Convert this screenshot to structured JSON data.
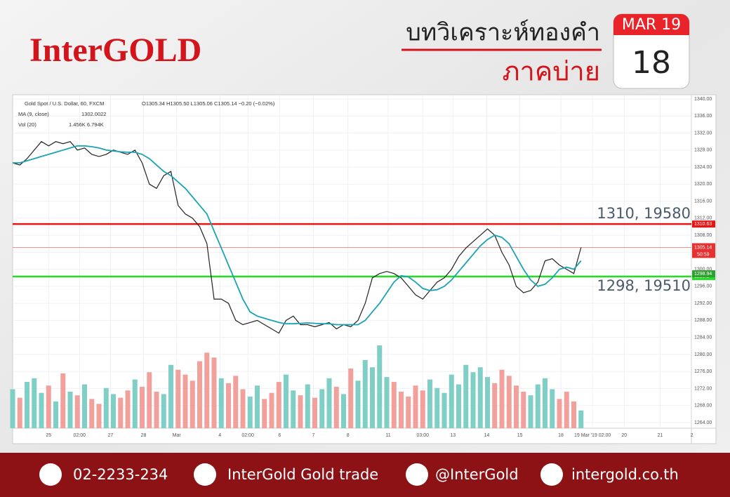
{
  "header": {
    "logo": "InterGOLD",
    "title": "บทวิเคราะห์ทองคำ",
    "subtitle": "ภาคบ่าย",
    "calendar_month": "MAR 19",
    "calendar_day": "18"
  },
  "footer": {
    "phone": "02-2233-234",
    "facebook": "InterGold Gold trade",
    "line": "@InterGold",
    "website": "intergold.co.th"
  },
  "chart_data": {
    "type": "line",
    "title": "Gold Spot / U.S. Dollar, 60, FXCM",
    "ohlc": "O1305.34 H1305.50 L1305.06 C1305.14 −0.20 (−0.02%)",
    "ma_label": "MA (9, close)",
    "ma_value": "1302.0022",
    "vol_label": "Vol (20)",
    "vol_value": "1.456K 6.794K",
    "countdown": "50:59",
    "ylim": [
      1263,
      1341
    ],
    "yticks": [
      {
        "value": 1264,
        "label": "1264.00"
      },
      {
        "value": 1268,
        "label": "1268.00"
      },
      {
        "value": 1272,
        "label": "1272.00"
      },
      {
        "value": 1276,
        "label": "1276.00"
      },
      {
        "value": 1280,
        "label": "1280.00"
      },
      {
        "value": 1284,
        "label": "1284.00"
      },
      {
        "value": 1288,
        "label": "1288.00"
      },
      {
        "value": 1292,
        "label": "1292.00"
      },
      {
        "value": 1296,
        "label": "1296.00"
      },
      {
        "value": 1300,
        "label": "1300.00"
      },
      {
        "value": 1304,
        "label": "1304.00"
      },
      {
        "value": 1308,
        "label": "1308.00"
      },
      {
        "value": 1312,
        "label": "1312.00"
      },
      {
        "value": 1316,
        "label": "1316.00"
      },
      {
        "value": 1320,
        "label": "1320.00"
      },
      {
        "value": 1324,
        "label": "1324.00"
      },
      {
        "value": 1328,
        "label": "1328.00"
      },
      {
        "value": 1332,
        "label": "1332.00"
      },
      {
        "value": 1336,
        "label": "1336.00"
      },
      {
        "value": 1340,
        "label": "1340.00"
      }
    ],
    "xticks": [
      {
        "value": 5,
        "label": "25"
      },
      {
        "value": 9.3,
        "label": "02:00"
      },
      {
        "value": 13.6,
        "label": "27"
      },
      {
        "value": 18.2,
        "label": "28"
      },
      {
        "value": 22.8,
        "label": "Mar"
      },
      {
        "value": 28.8,
        "label": "4"
      },
      {
        "value": 32.7,
        "label": "02:00"
      },
      {
        "value": 37.1,
        "label": "6"
      },
      {
        "value": 41.8,
        "label": "7"
      },
      {
        "value": 46.6,
        "label": "8"
      },
      {
        "value": 52.2,
        "label": "11"
      },
      {
        "value": 57,
        "label": "03:00"
      },
      {
        "value": 61.2,
        "label": "13"
      },
      {
        "value": 65.9,
        "label": "14"
      },
      {
        "value": 70.5,
        "label": "15"
      },
      {
        "value": 76.2,
        "label": "18"
      },
      {
        "value": 80.6,
        "label": "19 Mar '19  02:00"
      },
      {
        "value": 85,
        "label": "20"
      },
      {
        "value": 90,
        "label": "21"
      },
      {
        "value": 94.4,
        "label": "2"
      }
    ],
    "grid": true,
    "series": [
      {
        "name": "Gold Spot / U.S. Dollar",
        "color": "#222222",
        "values": [
          1325,
          1324.5,
          1326,
          1328,
          1330,
          1329,
          1330,
          1329.5,
          1330,
          1328,
          1328.5,
          1327,
          1326.5,
          1327,
          1328,
          1327.5,
          1327,
          1328,
          1325,
          1320,
          1319,
          1322,
          1323,
          1315,
          1313,
          1312,
          1310,
          1306,
          1293,
          1293,
          1292,
          1288,
          1287,
          1287.5,
          1288,
          1287,
          1286,
          1285,
          1288,
          1289,
          1287,
          1287,
          1286.5,
          1287,
          1287.5,
          1286,
          1287,
          1286.5,
          1288,
          1292,
          1298,
          1299,
          1299.5,
          1299,
          1298,
          1296,
          1294,
          1293,
          1295,
          1297,
          1298,
          1300,
          1303,
          1305,
          1306.5,
          1308,
          1309.5,
          1308,
          1304,
          1301,
          1296,
          1294.5,
          1295,
          1297,
          1302,
          1302.5,
          1301,
          1300,
          1299,
          1305.14
        ]
      },
      {
        "name": "MA (9, close)",
        "color": "#1aa3b0",
        "values": [
          1325,
          1325,
          1325.5,
          1326,
          1326.5,
          1327,
          1327.5,
          1328,
          1328.5,
          1329,
          1329,
          1328.8,
          1328.5,
          1328,
          1327.8,
          1327.6,
          1327.5,
          1327.5,
          1327,
          1326,
          1324.5,
          1323,
          1322,
          1320.5,
          1319,
          1317,
          1315,
          1313,
          1309,
          1305,
          1301,
          1297,
          1293,
          1290,
          1289,
          1288.5,
          1288,
          1287.5,
          1287.2,
          1287.2,
          1287.3,
          1287.4,
          1287.3,
          1287.2,
          1287.2,
          1287,
          1287,
          1287,
          1287,
          1288,
          1290,
          1292,
          1294.5,
          1297,
          1298.5,
          1298.2,
          1297,
          1295.5,
          1295,
          1295.2,
          1296,
          1297.5,
          1299.5,
          1301.5,
          1303.5,
          1305.5,
          1307,
          1308,
          1307.5,
          1306,
          1303,
          1300,
          1297.5,
          1296,
          1296.5,
          1298,
          1300,
          1300.5,
          1300,
          1302
        ]
      }
    ],
    "volume": {
      "up_color": "#7fcfc6",
      "down_color": "#f2a09c",
      "values": [
        3.2,
        2.5,
        3.8,
        4.1,
        2.9,
        3.5,
        2.2,
        4.5,
        3.0,
        2.7,
        3.6,
        2.4,
        2.0,
        3.3,
        2.8,
        2.5,
        3.1,
        4.0,
        3.4,
        4.6,
        3.0,
        2.8,
        5.2,
        4.8,
        4.4,
        3.9,
        5.5,
        6.2,
        5.8,
        4.1,
        3.7,
        4.3,
        3.2,
        2.6,
        3.5,
        2.4,
        2.9,
        3.8,
        4.4,
        3.1,
        2.7,
        3.6,
        2.5,
        3.2,
        4.1,
        3.4,
        2.8,
        4.9,
        3.9,
        5.6,
        5.0,
        6.8,
        4.2,
        3.8,
        3.0,
        2.6,
        3.5,
        3.1,
        4.0,
        3.3,
        2.9,
        4.4,
        3.6,
        5.2,
        4.6,
        5.0,
        4.2,
        3.7,
        4.8,
        4.3,
        3.5,
        3.0,
        2.7,
        3.6,
        4.1,
        3.2,
        2.4,
        3.0,
        2.2,
        1.456
      ]
    },
    "levels": [
      {
        "value": 1310.63,
        "color": "#e81414",
        "label": "1310, 19580"
      },
      {
        "value": 1298.3,
        "color": "#22dd22",
        "label": "1298, 19510"
      }
    ],
    "price_badges": [
      {
        "value": 1298.94,
        "color": "#2e9e2e"
      }
    ],
    "last_price_color": "#f08080"
  }
}
